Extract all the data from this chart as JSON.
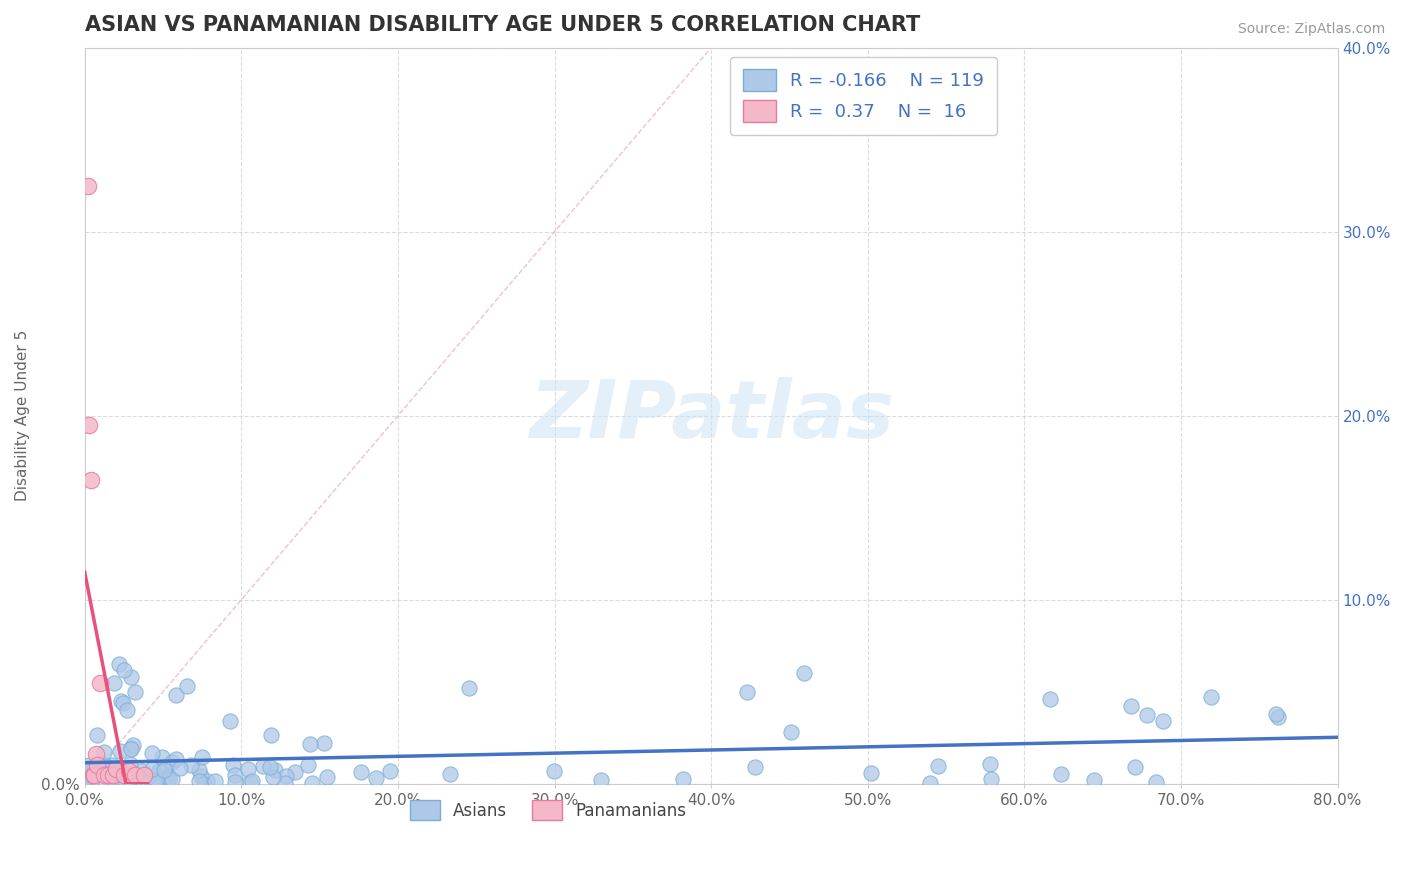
{
  "title": "ASIAN VS PANAMANIAN DISABILITY AGE UNDER 5 CORRELATION CHART",
  "source": "Source: ZipAtlas.com",
  "ylabel": "Disability Age Under 5",
  "xlim": [
    0.0,
    0.8
  ],
  "ylim": [
    0.0,
    0.4
  ],
  "xtick_vals": [
    0.0,
    0.1,
    0.2,
    0.3,
    0.4,
    0.5,
    0.6,
    0.7,
    0.8
  ],
  "ytick_vals": [
    0.0,
    0.1,
    0.2,
    0.3,
    0.4
  ],
  "xtick_labels": [
    "0.0%",
    "10.0%",
    "20.0%",
    "30.0%",
    "40.0%",
    "50.0%",
    "60.0%",
    "70.0%",
    "80.0%"
  ],
  "ytick_labels_right": [
    "",
    "10.0%",
    "20.0%",
    "30.0%",
    "40.0%"
  ],
  "asian_color": "#aec8e8",
  "asian_edge_color": "#7aafd4",
  "panamanian_color": "#f4b8c8",
  "panamanian_edge_color": "#e87aa0",
  "asian_trend_color": "#4472c4",
  "panamanian_trend_color": "#e8527a",
  "diag_line_color": "#f0b0c0",
  "asian_r": -0.166,
  "asian_n": 119,
  "panamanian_r": 0.37,
  "panamanian_n": 16,
  "legend_labels": [
    "Asians",
    "Panamanians"
  ],
  "watermark": "ZIPatlas",
  "background_color": "#ffffff",
  "grid_color": "#cccccc",
  "title_color": "#333333",
  "axis_label_color": "#666666",
  "tick_color": "#666666"
}
